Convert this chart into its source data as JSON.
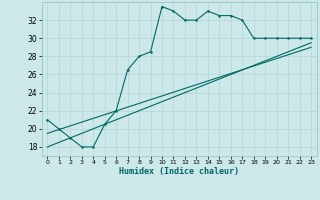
{
  "xlabel": "Humidex (Indice chaleur)",
  "bg_color": "#cce8e8",
  "line_color": "#006868",
  "grid_color": "#b8d8d8",
  "xlim": [
    -0.5,
    23.5
  ],
  "ylim": [
    17,
    34
  ],
  "yticks": [
    18,
    20,
    22,
    24,
    26,
    28,
    30,
    32
  ],
  "xticks": [
    0,
    1,
    2,
    3,
    4,
    5,
    6,
    7,
    8,
    9,
    10,
    11,
    12,
    13,
    14,
    15,
    16,
    17,
    18,
    19,
    20,
    21,
    22,
    23
  ],
  "series1_x": [
    0,
    1,
    2,
    3,
    4,
    5,
    6,
    7,
    8,
    9,
    10,
    11,
    12,
    13,
    14,
    15,
    16,
    17,
    18,
    19,
    20,
    21,
    22,
    23
  ],
  "series1_y": [
    21,
    20,
    19,
    18,
    18,
    20.5,
    22,
    26.5,
    28,
    28.5,
    33.5,
    33,
    32,
    32,
    33,
    32.5,
    32.5,
    32,
    30,
    30,
    30,
    30,
    30,
    30
  ],
  "series2_x": [
    0,
    23
  ],
  "series2_y": [
    19.5,
    29
  ],
  "series3_x": [
    0,
    23
  ],
  "series3_y": [
    18.0,
    29.5
  ]
}
